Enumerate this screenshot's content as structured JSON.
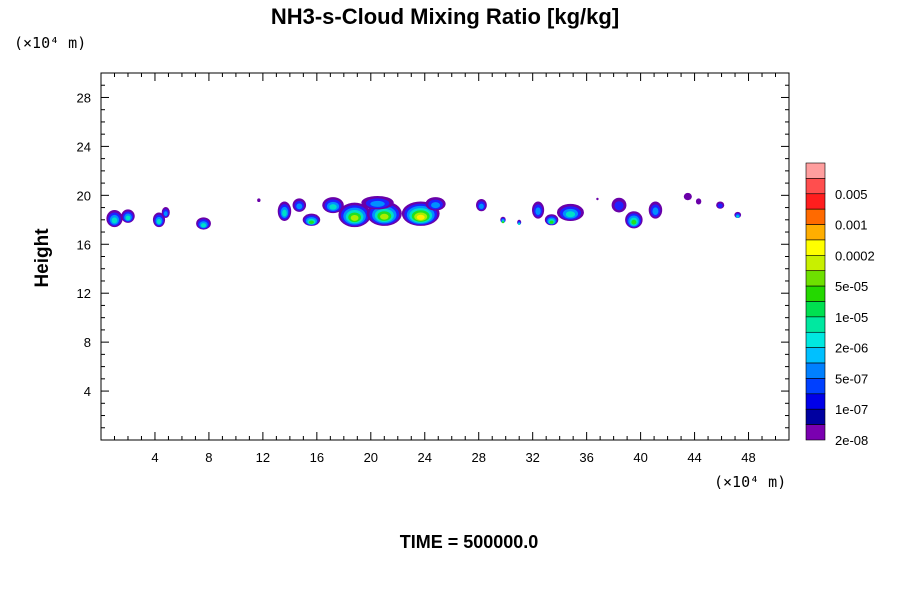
{
  "chart_data": {
    "type": "heatmap",
    "title": "NH3-s-Cloud Mixing Ratio [kg/kg]",
    "ylabel": "Height",
    "xlabel": "",
    "x_unit": "(×10⁴ m)",
    "y_unit": "(×10⁴ m)",
    "footer": "TIME = 500000.0",
    "xlim": [
      0,
      51
    ],
    "ylim": [
      0,
      30
    ],
    "x_ticks": [
      4,
      8,
      12,
      16,
      20,
      24,
      28,
      32,
      36,
      40,
      44,
      48
    ],
    "y_ticks": [
      4,
      8,
      12,
      16,
      20,
      24,
      28
    ],
    "legend_placement": "right",
    "colorbar": {
      "labels": [
        "0.005",
        "0.001",
        "0.0002",
        "5e-05",
        "1e-05",
        "2e-06",
        "5e-07",
        "1e-07",
        "2e-08"
      ],
      "colors": [
        "#ff9e9e",
        "#ff4e4e",
        "#ff1e1e",
        "#ff6a00",
        "#ffae00",
        "#ffff00",
        "#c8f000",
        "#6ee000",
        "#24d800",
        "#00e050",
        "#00e8a0",
        "#00e8e0",
        "#00c0ff",
        "#0080ff",
        "#0040ff",
        "#0000e8",
        "#0000a0",
        "#7a00b0"
      ]
    },
    "cloud_cells": [
      {
        "x": 1.0,
        "y": 18.1,
        "w": 1.2,
        "h": 1.4,
        "level": 3
      },
      {
        "x": 2.0,
        "y": 18.3,
        "w": 1.0,
        "h": 1.1,
        "level": 3
      },
      {
        "x": 4.3,
        "y": 18.0,
        "w": 0.9,
        "h": 1.2,
        "level": 3
      },
      {
        "x": 4.8,
        "y": 18.6,
        "w": 0.6,
        "h": 0.9,
        "level": 2
      },
      {
        "x": 7.6,
        "y": 17.7,
        "w": 1.1,
        "h": 1.0,
        "level": 3
      },
      {
        "x": 11.7,
        "y": 19.6,
        "w": 0.25,
        "h": 0.3,
        "level": 0
      },
      {
        "x": 13.6,
        "y": 18.7,
        "w": 1.0,
        "h": 1.6,
        "level": 3
      },
      {
        "x": 14.7,
        "y": 19.2,
        "w": 1.0,
        "h": 1.1,
        "level": 2
      },
      {
        "x": 15.6,
        "y": 18.0,
        "w": 1.3,
        "h": 1.0,
        "level": 4
      },
      {
        "x": 17.2,
        "y": 19.2,
        "w": 1.6,
        "h": 1.3,
        "level": 3
      },
      {
        "x": 18.8,
        "y": 18.4,
        "w": 2.4,
        "h": 2.0,
        "level": 5
      },
      {
        "x": 21.0,
        "y": 18.5,
        "w": 2.6,
        "h": 2.0,
        "level": 5
      },
      {
        "x": 23.7,
        "y": 18.5,
        "w": 2.8,
        "h": 2.0,
        "level": 6
      },
      {
        "x": 20.5,
        "y": 19.4,
        "w": 2.4,
        "h": 1.1,
        "level": 2
      },
      {
        "x": 24.8,
        "y": 19.3,
        "w": 1.5,
        "h": 1.1,
        "level": 2
      },
      {
        "x": 28.2,
        "y": 19.2,
        "w": 0.8,
        "h": 1.0,
        "level": 2
      },
      {
        "x": 29.8,
        "y": 18.0,
        "w": 0.4,
        "h": 0.5,
        "level": 4
      },
      {
        "x": 31.0,
        "y": 17.8,
        "w": 0.3,
        "h": 0.4,
        "level": 3
      },
      {
        "x": 32.4,
        "y": 18.8,
        "w": 0.9,
        "h": 1.4,
        "level": 2
      },
      {
        "x": 33.4,
        "y": 18.0,
        "w": 1.0,
        "h": 0.9,
        "level": 4
      },
      {
        "x": 34.8,
        "y": 18.6,
        "w": 2.0,
        "h": 1.4,
        "level": 3
      },
      {
        "x": 36.8,
        "y": 19.7,
        "w": 0.15,
        "h": 0.2,
        "level": 0
      },
      {
        "x": 38.4,
        "y": 19.2,
        "w": 1.1,
        "h": 1.2,
        "level": 1
      },
      {
        "x": 39.5,
        "y": 18.0,
        "w": 1.3,
        "h": 1.4,
        "level": 4
      },
      {
        "x": 41.1,
        "y": 18.8,
        "w": 1.0,
        "h": 1.4,
        "level": 2
      },
      {
        "x": 43.5,
        "y": 19.9,
        "w": 0.6,
        "h": 0.6,
        "level": 0
      },
      {
        "x": 44.3,
        "y": 19.5,
        "w": 0.4,
        "h": 0.5,
        "level": 0
      },
      {
        "x": 45.9,
        "y": 19.2,
        "w": 0.6,
        "h": 0.6,
        "level": 1
      },
      {
        "x": 47.2,
        "y": 18.4,
        "w": 0.5,
        "h": 0.5,
        "level": 3
      }
    ]
  }
}
